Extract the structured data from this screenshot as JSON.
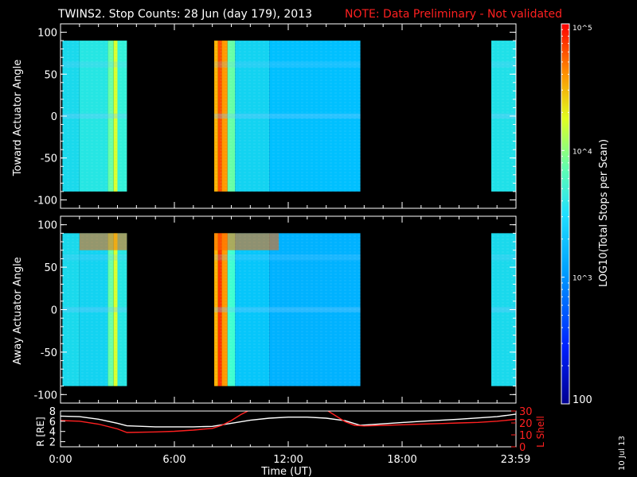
{
  "header": {
    "title": "TWINS2. Stop Counts: 28 Jun (day 179), 2013",
    "note": "NOTE: Data Preliminary - Not validated",
    "note_color": "#ff2020"
  },
  "side_date": "10 Jul 13",
  "colorbar": {
    "label": "LOG10(Total Stops per Scan)",
    "ticks": [
      "10^5",
      "10^4",
      "10^3",
      "100"
    ],
    "range_log10": [
      2,
      5
    ]
  },
  "chart_data": [
    {
      "type": "heatmap",
      "name": "toward",
      "ylabel": "Toward Actuator Angle",
      "ylim": [
        -110,
        110
      ],
      "yticks": [
        -100,
        -50,
        0,
        50,
        100
      ],
      "xlim_hours": [
        0,
        24
      ],
      "y_extent": [
        -90,
        90
      ],
      "data_blocks_hours": [
        [
          0.1,
          3.5
        ],
        [
          8.1,
          15.8
        ],
        [
          22.7,
          24.0
        ]
      ],
      "cmap": [
        "#000090",
        "#0030ff",
        "#00c0ff",
        "#40ffd0",
        "#ffff00",
        "#ff8000",
        "#ff0000"
      ],
      "columns": [
        {
          "t": [
            0.1,
            1.0
          ],
          "v": 3.2
        },
        {
          "t": [
            1.0,
            2.5
          ],
          "v": 3.3
        },
        {
          "t": [
            2.5,
            2.8
          ],
          "v": 3.6
        },
        {
          "t": [
            2.8,
            3.0
          ],
          "v": 3.9
        },
        {
          "t": [
            3.0,
            3.5
          ],
          "v": 3.4
        },
        {
          "t": [
            8.1,
            8.3
          ],
          "v": 4.3
        },
        {
          "t": [
            8.3,
            8.5
          ],
          "v": 4.7
        },
        {
          "t": [
            8.5,
            8.8
          ],
          "v": 4.4
        },
        {
          "t": [
            8.8,
            9.2
          ],
          "v": 3.6
        },
        {
          "t": [
            9.2,
            11.0
          ],
          "v": 3.15
        },
        {
          "t": [
            11.0,
            15.8
          ],
          "v": 3.0
        },
        {
          "t": [
            22.7,
            24.0
          ],
          "v": 3.25
        }
      ]
    },
    {
      "type": "heatmap",
      "name": "away",
      "ylabel": "Away Actuator Angle",
      "ylim": [
        -110,
        110
      ],
      "yticks": [
        -100,
        -50,
        0,
        50,
        100
      ],
      "xlim_hours": [
        0,
        24
      ],
      "y_extent": [
        -90,
        90
      ],
      "data_blocks_hours": [
        [
          0.1,
          3.5
        ],
        [
          8.1,
          15.8
        ],
        [
          22.7,
          24.0
        ]
      ],
      "cmap": [
        "#000090",
        "#0030ff",
        "#00c0ff",
        "#40ffd0",
        "#ffff00",
        "#ff8000",
        "#ff0000"
      ],
      "columns": [
        {
          "t": [
            0.1,
            1.0
          ],
          "v": 3.2
        },
        {
          "t": [
            1.0,
            2.5
          ],
          "v": 3.15
        },
        {
          "t": [
            2.5,
            2.8
          ],
          "v": 3.6
        },
        {
          "t": [
            2.8,
            3.0
          ],
          "v": 3.9
        },
        {
          "t": [
            3.0,
            3.5
          ],
          "v": 3.3
        },
        {
          "t": [
            8.1,
            8.3
          ],
          "v": 4.3
        },
        {
          "t": [
            8.3,
            8.5
          ],
          "v": 4.8
        },
        {
          "t": [
            8.5,
            8.8
          ],
          "v": 4.4
        },
        {
          "t": [
            8.8,
            9.2
          ],
          "v": 3.5
        },
        {
          "t": [
            9.2,
            11.0
          ],
          "v": 3.05
        },
        {
          "t": [
            11.0,
            15.8
          ],
          "v": 2.95
        },
        {
          "t": [
            22.7,
            24.0
          ],
          "v": 3.2
        }
      ],
      "hot_band": {
        "y": [
          70,
          90
        ],
        "blocks": [
          [
            1.0,
            3.5
          ],
          [
            8.1,
            11.5
          ]
        ],
        "v": 4.6
      }
    },
    {
      "type": "line",
      "name": "orbit",
      "xlabel": "Time (UT)",
      "xticks": [
        "0:00",
        "6:00",
        "12:00",
        "18:00",
        "23:59"
      ],
      "xticks_hours": [
        0,
        6,
        12,
        18,
        23.98
      ],
      "ylabel_left": "R [RE]",
      "yticks_left": [
        2,
        4,
        6,
        8
      ],
      "ylim_left": [
        1,
        8
      ],
      "ylabel_right": "L Shell",
      "yticks_right": [
        0,
        10,
        20,
        30
      ],
      "ylim_right": [
        0,
        30
      ],
      "series": [
        {
          "axis": "left",
          "color": "#ffffff",
          "x": [
            0,
            1,
            2,
            3,
            3.5,
            5,
            7,
            8,
            9,
            10,
            11,
            12,
            13,
            14,
            15,
            15.8,
            17,
            19,
            21,
            23,
            24
          ],
          "y": [
            7.0,
            6.9,
            6.4,
            5.6,
            5.1,
            4.9,
            4.9,
            5.0,
            5.6,
            6.2,
            6.6,
            6.8,
            6.8,
            6.6,
            6.1,
            5.2,
            5.5,
            6.0,
            6.4,
            6.9,
            7.4
          ]
        },
        {
          "axis": "right",
          "color": "#ff2020",
          "segments": [
            {
              "x": [
                0,
                1,
                2,
                3,
                3.5,
                5,
                6,
                7,
                8,
                8.5,
                9,
                9.5,
                10.0
              ],
              "y": [
                22,
                21.5,
                19,
                15,
                12,
                12.5,
                13,
                14,
                15.5,
                18,
                22,
                27,
                31
              ]
            },
            {
              "x": [
                14.0,
                14.5,
                15.0,
                15.5,
                16,
                17,
                18,
                19,
                20,
                21,
                22,
                23,
                24
              ],
              "y": [
                31,
                26,
                21,
                18,
                17.5,
                18,
                18.5,
                19,
                19.5,
                20,
                20.5,
                21.5,
                23
              ]
            }
          ]
        }
      ]
    }
  ]
}
